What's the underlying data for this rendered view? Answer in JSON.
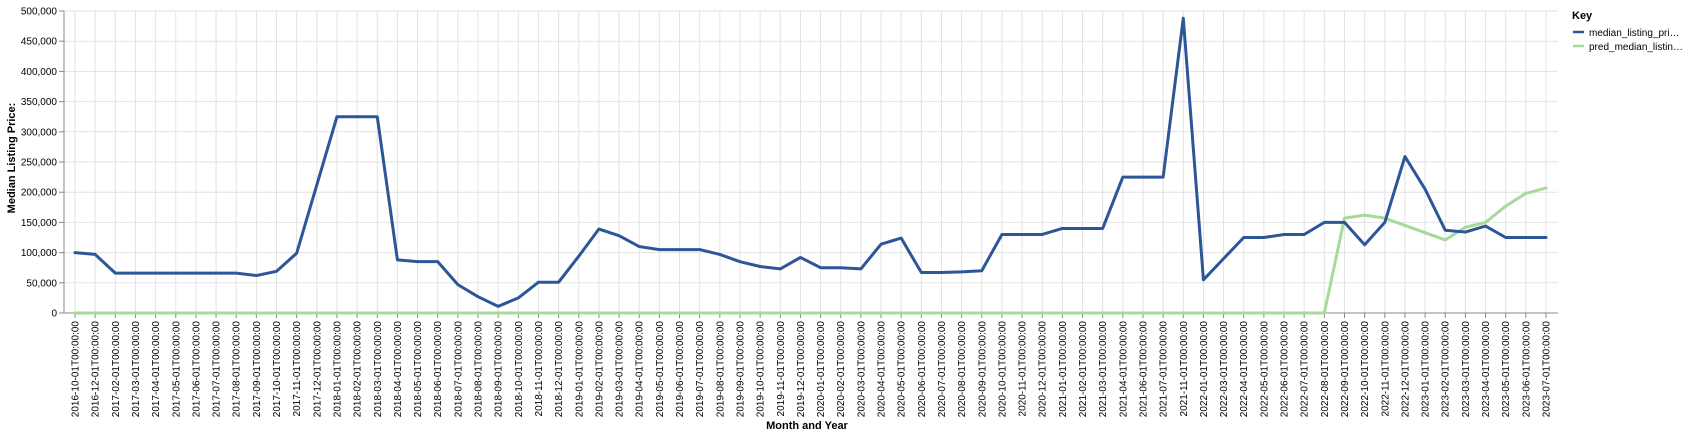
{
  "chart_data": {
    "type": "line",
    "xlabel": "Month and Year",
    "ylabel": "Median Listing Price:",
    "ylim": [
      0,
      500000
    ],
    "yticks": [
      "0",
      "50,000",
      "100,000",
      "150,000",
      "200,000",
      "250,000",
      "300,000",
      "350,000",
      "400,000",
      "450,000",
      "500,000"
    ],
    "grid": true,
    "legend": {
      "title": "Key",
      "position": "top-right",
      "entries": [
        "median_listing_pri…",
        "pred_median_listin…"
      ]
    },
    "colors": [
      "#2c5697",
      "#a6d99b"
    ],
    "categories": [
      "2016-10-01T00:00:00",
      "2016-12-01T00:00:00",
      "2017-02-01T00:00:00",
      "2017-03-01T00:00:00",
      "2017-04-01T00:00:00",
      "2017-05-01T00:00:00",
      "2017-06-01T00:00:00",
      "2017-07-01T00:00:00",
      "2017-08-01T00:00:00",
      "2017-09-01T00:00:00",
      "2017-10-01T00:00:00",
      "2017-11-01T00:00:00",
      "2017-12-01T00:00:00",
      "2018-01-01T00:00:00",
      "2018-02-01T00:00:00",
      "2018-03-01T00:00:00",
      "2018-04-01T00:00:00",
      "2018-05-01T00:00:00",
      "2018-06-01T00:00:00",
      "2018-07-01T00:00:00",
      "2018-08-01T00:00:00",
      "2018-09-01T00:00:00",
      "2018-10-01T00:00:00",
      "2018-11-01T00:00:00",
      "2018-12-01T00:00:00",
      "2019-01-01T00:00:00",
      "2019-02-01T00:00:00",
      "2019-03-01T00:00:00",
      "2019-04-01T00:00:00",
      "2019-05-01T00:00:00",
      "2019-06-01T00:00:00",
      "2019-07-01T00:00:00",
      "2019-08-01T00:00:00",
      "2019-09-01T00:00:00",
      "2019-10-01T00:00:00",
      "2019-11-01T00:00:00",
      "2019-12-01T00:00:00",
      "2020-01-01T00:00:00",
      "2020-02-01T00:00:00",
      "2020-03-01T00:00:00",
      "2020-04-01T00:00:00",
      "2020-05-01T00:00:00",
      "2020-06-01T00:00:00",
      "2020-07-01T00:00:00",
      "2020-08-01T00:00:00",
      "2020-09-01T00:00:00",
      "2020-10-01T00:00:00",
      "2020-11-01T00:00:00",
      "2020-12-01T00:00:00",
      "2021-01-01T00:00:00",
      "2021-02-01T00:00:00",
      "2021-03-01T00:00:00",
      "2021-04-01T00:00:00",
      "2021-06-01T00:00:00",
      "2021-07-01T00:00:00",
      "2021-11-01T00:00:00",
      "2022-01-01T00:00:00",
      "2022-03-01T00:00:00",
      "2022-04-01T00:00:00",
      "2022-05-01T00:00:00",
      "2022-06-01T00:00:00",
      "2022-07-01T00:00:00",
      "2022-08-01T00:00:00",
      "2022-09-01T00:00:00",
      "2022-10-01T00:00:00",
      "2022-11-01T00:00:00",
      "2022-12-01T00:00:00",
      "2023-01-01T00:00:00",
      "2023-02-01T00:00:00",
      "2023-03-01T00:00:00",
      "2023-04-01T00:00:00",
      "2023-05-01T00:00:00",
      "2023-06-01T00:00:00",
      "2023-07-01T00:00:00"
    ],
    "series": [
      {
        "name": "median_listing_pri…",
        "values": [
          100000,
          97000,
          66000,
          66000,
          66000,
          66000,
          66000,
          66000,
          66000,
          62000,
          69000,
          99000,
          212000,
          325000,
          325000,
          325000,
          88000,
          85000,
          85000,
          47000,
          27000,
          11000,
          25000,
          51000,
          51000,
          94000,
          139000,
          128000,
          110000,
          105000,
          105000,
          105000,
          97000,
          85000,
          77000,
          73000,
          92000,
          75000,
          75000,
          73000,
          114000,
          124000,
          67000,
          67000,
          68000,
          70000,
          130000,
          130000,
          130000,
          140000,
          140000,
          140000,
          225000,
          225000,
          225000,
          488000,
          55000,
          90000,
          125000,
          125000,
          130000,
          130000,
          150000,
          150000,
          113000,
          150000,
          259000,
          205000,
          137000,
          134000,
          144000,
          125000,
          125000,
          125000
        ]
      },
      {
        "name": "pred_median_listin…",
        "values": [
          0,
          0,
          0,
          0,
          0,
          0,
          0,
          0,
          0,
          0,
          0,
          0,
          0,
          0,
          0,
          0,
          0,
          0,
          0,
          0,
          0,
          0,
          0,
          0,
          0,
          0,
          0,
          0,
          0,
          0,
          0,
          0,
          0,
          0,
          0,
          0,
          0,
          0,
          0,
          0,
          0,
          0,
          0,
          0,
          0,
          0,
          0,
          0,
          0,
          0,
          0,
          0,
          0,
          0,
          0,
          0,
          0,
          0,
          0,
          0,
          0,
          0,
          0,
          157000,
          162000,
          157000,
          145000,
          133000,
          121000,
          142000,
          150000,
          177000,
          198000,
          207000
        ]
      }
    ]
  }
}
